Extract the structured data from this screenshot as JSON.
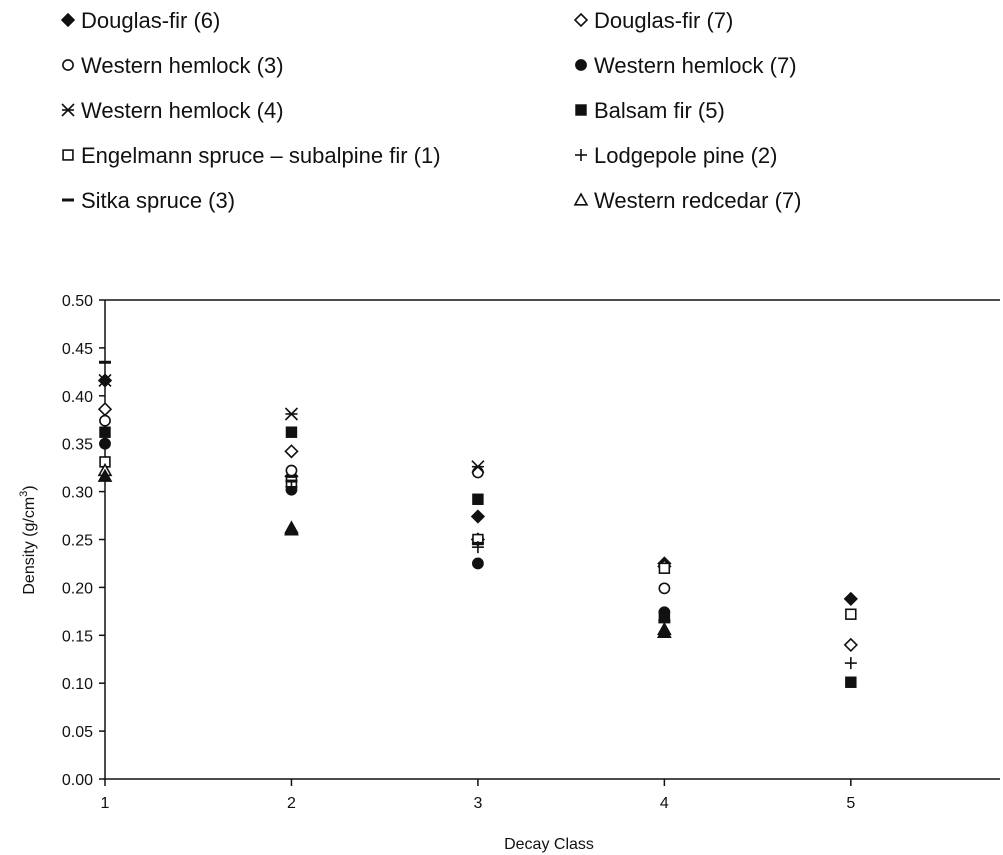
{
  "chart_data": {
    "type": "scatter",
    "xlabel": "Decay Class",
    "ylabel": "Density (g/cm³)",
    "ylabel_base": "Density (g/cm",
    "ylabel_sup": "3",
    "ylabel_end": ")",
    "xlim": [
      1,
      5.8
    ],
    "ylim": [
      0,
      0.5
    ],
    "x_ticks": [
      "1",
      "2",
      "3",
      "4",
      "5"
    ],
    "y_ticks": [
      "0.00",
      "0.05",
      "0.10",
      "0.15",
      "0.20",
      "0.25",
      "0.30",
      "0.35",
      "0.40",
      "0.45",
      "0.50"
    ],
    "grid": false,
    "legend_position": "top",
    "series": [
      {
        "name": "Douglas-fir (6)",
        "marker": "diamond-filled",
        "points": [
          [
            1,
            0.416
          ],
          [
            2,
            0.316
          ],
          [
            3,
            0.274
          ],
          [
            4,
            0.225
          ],
          [
            5,
            0.188
          ]
        ]
      },
      {
        "name": "Douglas-fir (7)",
        "marker": "diamond-open",
        "points": [
          [
            1,
            0.386
          ],
          [
            2,
            0.342
          ],
          [
            3,
            0.25
          ],
          [
            4,
            0.222
          ],
          [
            5,
            0.14
          ]
        ]
      },
      {
        "name": "Western hemlock (3)",
        "marker": "circle-open",
        "points": [
          [
            1,
            0.374
          ],
          [
            2,
            0.322
          ],
          [
            3,
            0.32
          ],
          [
            4,
            0.199
          ]
        ]
      },
      {
        "name": "Western hemlock (7)",
        "marker": "circle-filled",
        "points": [
          [
            1,
            0.35
          ],
          [
            2,
            0.302
          ],
          [
            3,
            0.225
          ],
          [
            4,
            0.174
          ]
        ]
      },
      {
        "name": "Western hemlock (4)",
        "marker": "asterisk",
        "points": [
          [
            1,
            0.416
          ],
          [
            2,
            0.381
          ],
          [
            3,
            0.326
          ]
        ]
      },
      {
        "name": "Balsam fir (5)",
        "marker": "square-filled",
        "points": [
          [
            1,
            0.362
          ],
          [
            2,
            0.362
          ],
          [
            3,
            0.292
          ],
          [
            4,
            0.17
          ],
          [
            5,
            0.101
          ]
        ]
      },
      {
        "name": "Engelmann spruce – subalpine fir (1)",
        "marker": "square-open",
        "points": [
          [
            1,
            0.331
          ],
          [
            2,
            0.31
          ],
          [
            3,
            0.25
          ],
          [
            4,
            0.22
          ],
          [
            5,
            0.172
          ]
        ]
      },
      {
        "name": "Lodgepole pine (2)",
        "marker": "plus",
        "points": [
          [
            2,
            0.305
          ],
          [
            3,
            0.242
          ],
          [
            4,
            0.166
          ],
          [
            5,
            0.121
          ]
        ]
      },
      {
        "name": "Sitka spruce (3)",
        "marker": "dash",
        "points": [
          [
            1,
            0.435
          ],
          [
            2,
            0.311
          ],
          [
            3,
            0.246
          ],
          [
            4,
            0.164
          ]
        ]
      },
      {
        "name": "Western redcedar (7)",
        "marker": "triangle-open",
        "points": [
          [
            1,
            0.322
          ],
          [
            2,
            0.262
          ],
          [
            4,
            0.156
          ]
        ]
      },
      {
        "name": "",
        "marker": "triangle-filled",
        "points": [
          [
            1,
            0.316
          ],
          [
            2,
            0.26
          ],
          [
            4,
            0.153
          ]
        ]
      }
    ]
  }
}
